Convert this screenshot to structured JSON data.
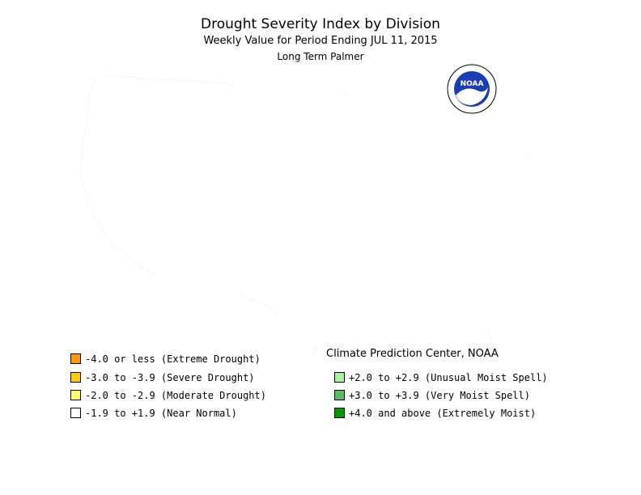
{
  "title": "Drought Severity Index by Division",
  "subtitle": "Weekly Value for Period Ending JUL 11, 2015",
  "subtitle2": "Long Term Palmer",
  "credit": "Climate Prediction Center, NOAA",
  "logo_text": "NOAA",
  "colors": {
    "extreme_drought": "#ff9900",
    "severe_drought": "#ffcc00",
    "moderate_drought": "#ffff66",
    "near_normal": "#ffffff",
    "unusual_moist": "#aaf0a0",
    "very_moist": "#5dbb63",
    "extremely_moist": "#009900",
    "boundary": "#000000",
    "logo_blue": "#1a3cb5"
  },
  "legend": {
    "left": [
      {
        "label": "-4.0 or less (Extreme Drought)",
        "color": "#ff9900"
      },
      {
        "label": "-3.0 to -3.9 (Severe Drought)",
        "color": "#ffcc00"
      },
      {
        "label": "-2.0 to -2.9 (Moderate Drought)",
        "color": "#ffff66"
      },
      {
        "label": "-1.9 to +1.9 (Near Normal)",
        "color": "#ffffff"
      }
    ],
    "right": [
      {
        "label": "+2.0 to +2.9 (Unusual Moist Spell)",
        "color": "#aaf0a0"
      },
      {
        "label": "+3.0 to +3.9 (Very Moist Spell)",
        "color": "#5dbb63"
      },
      {
        "label": "+4.0 and above (Extremely Moist)",
        "color": "#009900"
      }
    ]
  }
}
